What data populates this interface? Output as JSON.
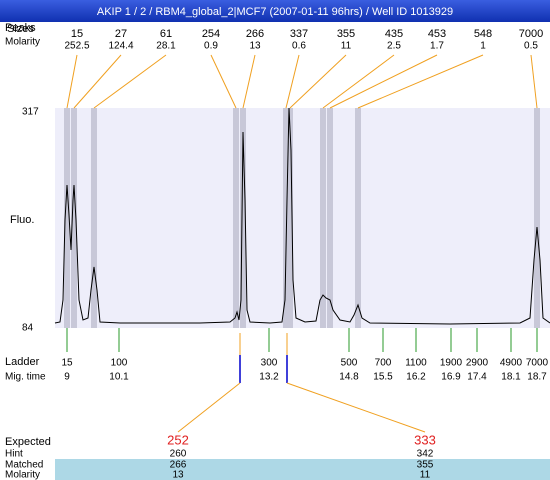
{
  "header": {
    "title": "AKIP 1 / 2 / RBM4_global_2|MCF7 (2007-01-11 96hrs) / Well ID 1013929"
  },
  "top": {
    "peaks_label": "Peaks",
    "sizes_label": "Sizes",
    "molarity_label": "Molarity"
  },
  "peaks": [
    {
      "size": "15",
      "molarity": "252.5"
    },
    {
      "size": "27",
      "molarity": "124.4"
    },
    {
      "size": "61",
      "molarity": "28.1"
    },
    {
      "size": "254",
      "molarity": "0.9"
    },
    {
      "size": "266",
      "molarity": "13"
    },
    {
      "size": "337",
      "molarity": "0.6"
    },
    {
      "size": "355",
      "molarity": "11"
    },
    {
      "size": "435",
      "molarity": "2.5"
    },
    {
      "size": "453",
      "molarity": "1.7"
    },
    {
      "size": "548",
      "molarity": "1"
    },
    {
      "size": "7000",
      "molarity": "0.5"
    }
  ],
  "axis": {
    "label": "Fluo.",
    "max": "317",
    "min": "84"
  },
  "ladder": {
    "label": "Ladder",
    "time_label": "Mig. time",
    "items": [
      {
        "size": "15",
        "time": "9"
      },
      {
        "size": "100",
        "time": "10.1"
      },
      {
        "size": "300",
        "time": "13.2"
      },
      {
        "size": "500",
        "time": "14.8"
      },
      {
        "size": "700",
        "time": "15.5"
      },
      {
        "size": "1100",
        "time": "16.2"
      },
      {
        "size": "1900",
        "time": "16.9"
      },
      {
        "size": "2900",
        "time": "17.4"
      },
      {
        "size": "4900",
        "time": "18.1"
      },
      {
        "size": "7000",
        "time": "18.7"
      }
    ]
  },
  "expected": {
    "labels": [
      "Expected",
      "Hint",
      "Matched",
      "Molarity"
    ],
    "columns": [
      {
        "expected": "252",
        "hint": "260",
        "matched": "266",
        "molarity": "13"
      },
      {
        "expected": "333",
        "hint": "342",
        "matched": "355",
        "molarity": "11"
      }
    ]
  }
}
